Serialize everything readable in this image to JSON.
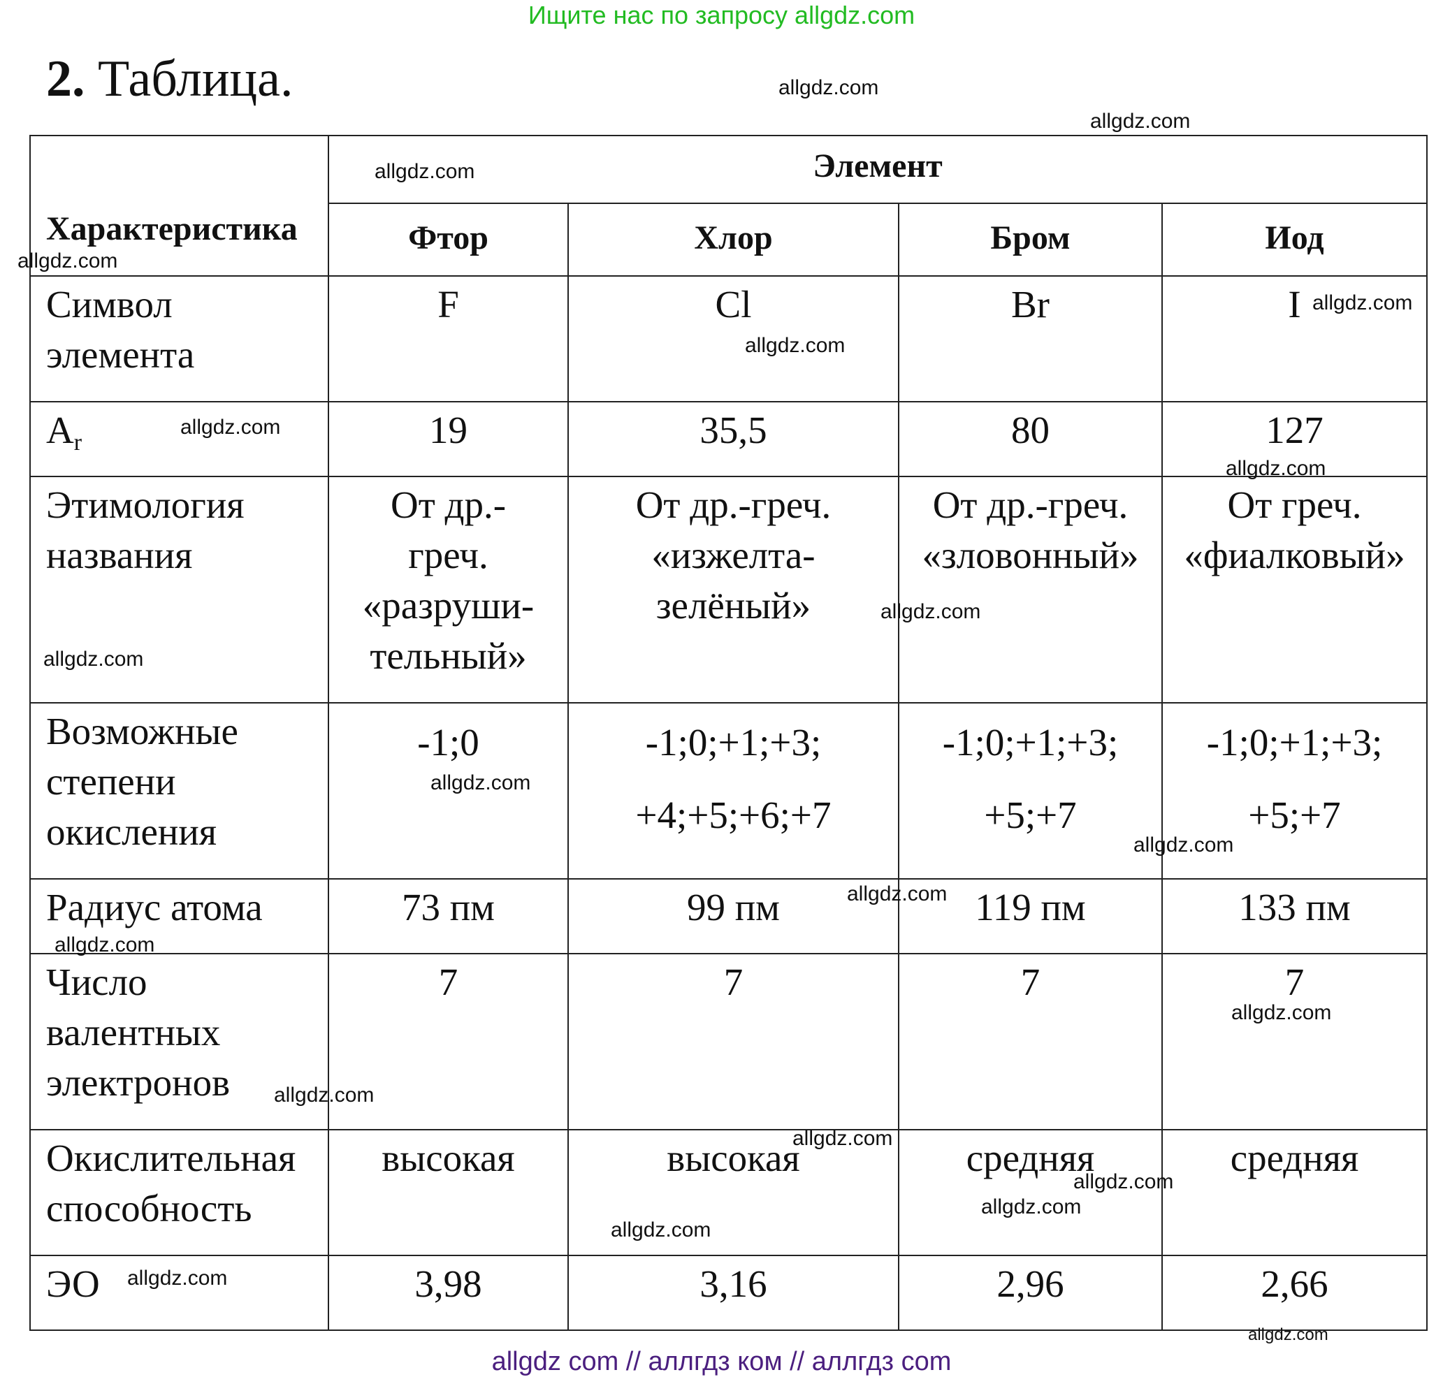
{
  "banner": {
    "top_text": "Ищите нас по запросу allgdz.com",
    "top_color": "#22bb22",
    "bottom_text": "allgdz com  //  аллгдз ком  //  аллгдз com",
    "bottom_color": "#4b1f7f"
  },
  "title": {
    "number": "2.",
    "text": " Таблица."
  },
  "table": {
    "header": {
      "characteristic": "Характеристика",
      "element": "Элемент",
      "elements": [
        "Фтор",
        "Хлор",
        "Бром",
        "Иод"
      ]
    },
    "rows": [
      {
        "label": [
          "Символ",
          "элемента"
        ],
        "values": [
          [
            "F"
          ],
          [
            "Cl"
          ],
          [
            "Br"
          ],
          [
            "I"
          ]
        ]
      },
      {
        "label_main": "A",
        "label_sub": "r",
        "values": [
          [
            "19"
          ],
          [
            "35,5"
          ],
          [
            "80"
          ],
          [
            "127"
          ]
        ]
      },
      {
        "label": [
          "Этимология",
          "названия"
        ],
        "values": [
          [
            "От др.-",
            "греч.",
            "«разруши-",
            "тельный»"
          ],
          [
            "От др.-греч.",
            "«изжелта-",
            "зелёный»"
          ],
          [
            "От др.-греч.",
            "«зловонный»"
          ],
          [
            "От греч.",
            "«фиалковый»"
          ]
        ]
      },
      {
        "label": [
          "Возможные",
          "степени",
          "окисления"
        ],
        "values": [
          [
            "-1;0"
          ],
          [
            "-1;0;+1;+3;",
            "+4;+5;+6;+7"
          ],
          [
            "-1;0;+1;+3;",
            "+5;+7"
          ],
          [
            "-1;0;+1;+3;",
            "+5;+7"
          ]
        ]
      },
      {
        "label": [
          "Радиус атома"
        ],
        "values": [
          [
            "73 пм"
          ],
          [
            "99 пм"
          ],
          [
            "119 пм"
          ],
          [
            "133 пм"
          ]
        ]
      },
      {
        "label": [
          "Число",
          "валентных",
          "электронов"
        ],
        "values": [
          [
            "7"
          ],
          [
            "7"
          ],
          [
            "7"
          ],
          [
            "7"
          ]
        ]
      },
      {
        "label": [
          "Окислительная",
          "способность"
        ],
        "values": [
          [
            "высокая"
          ],
          [
            "высокая"
          ],
          [
            "средняя"
          ],
          [
            "средняя"
          ]
        ]
      },
      {
        "label": [
          "ЭО"
        ],
        "values": [
          [
            "3,98"
          ],
          [
            "3,16"
          ],
          [
            "2,96"
          ],
          [
            "2,66"
          ]
        ]
      }
    ]
  },
  "watermarks": [
    "allgdz.com",
    "allgdz.com",
    "allgdz.com",
    "allgdz.com",
    "allgdz.com",
    "allgdz.com",
    "allgdz.com",
    "allgdz.com",
    "allgdz.com",
    "allgdz.com",
    "allgdz.com",
    "allgdz.com",
    "allgdz.com",
    "allgdz.com",
    "allgdz.com",
    "allgdz.com",
    "allgdz.com",
    "allgdz.com",
    "allgdz.com",
    "allgdz.com",
    "allgdz.com",
    "allgdz.com"
  ]
}
